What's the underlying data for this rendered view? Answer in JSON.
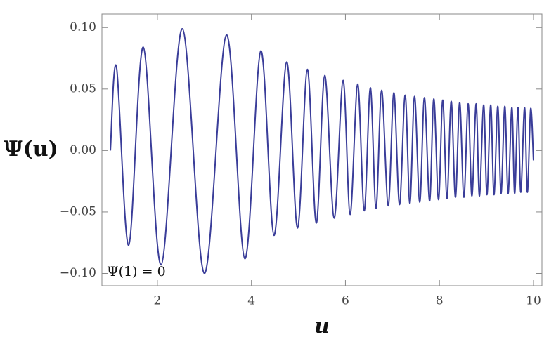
{
  "chart_data": {
    "type": "line",
    "xlabel": "u",
    "ylabel": "Ψ(u)",
    "annotation": "Ψ(1) = 0",
    "color": "#3a3d99",
    "x": [
      1.0,
      1.13,
      1.39,
      1.7,
      2.08,
      2.53,
      3.0,
      3.47,
      3.86,
      4.2,
      4.48,
      4.75,
      4.98,
      5.19,
      5.38,
      5.56,
      5.76,
      5.95,
      6.1,
      6.26,
      6.4,
      6.53,
      6.65,
      6.77,
      6.91,
      7.03,
      7.15,
      7.27,
      7.37,
      7.47,
      7.58,
      7.68,
      7.79,
      7.88,
      7.98,
      8.07,
      8.16,
      8.25,
      8.34,
      8.43,
      8.52,
      8.61,
      8.69,
      8.78,
      8.85,
      8.94,
      9.01,
      9.09,
      9.16,
      9.24,
      9.31,
      9.39,
      9.46,
      9.54,
      9.6,
      9.67,
      9.73,
      9.81,
      9.87,
      9.94,
      10.0
    ],
    "values": [
      0,
      0.068,
      -0.077,
      0.084,
      -0.093,
      0.099,
      -0.1,
      0.094,
      -0.088,
      0.081,
      -0.069,
      0.072,
      -0.063,
      0.066,
      -0.059,
      0.061,
      -0.055,
      0.057,
      -0.052,
      0.054,
      -0.049,
      0.051,
      -0.047,
      0.049,
      -0.045,
      0.047,
      -0.044,
      0.045,
      -0.043,
      0.044,
      -0.042,
      0.043,
      -0.041,
      0.042,
      -0.04,
      0.041,
      -0.039,
      0.04,
      -0.038,
      0.039,
      -0.038,
      0.038,
      -0.037,
      0.038,
      -0.037,
      0.037,
      -0.036,
      0.037,
      -0.036,
      0.036,
      -0.035,
      0.036,
      -0.035,
      0.035,
      -0.035,
      0.035,
      -0.034,
      0.035,
      -0.034,
      0.034,
      -0.008
    ],
    "xlim": [
      0.82,
      10.18
    ],
    "ylim": [
      -0.11,
      0.111
    ],
    "xticks": [
      2,
      4,
      6,
      8,
      10
    ],
    "yticks": [
      {
        "value": 0.1,
        "label": "0.10"
      },
      {
        "value": 0.05,
        "label": "0.05"
      },
      {
        "value": 0,
        "label": "0.00"
      },
      {
        "value": -0.05,
        "label": "−0.05"
      },
      {
        "value": -0.1,
        "label": "−0.10"
      }
    ]
  }
}
